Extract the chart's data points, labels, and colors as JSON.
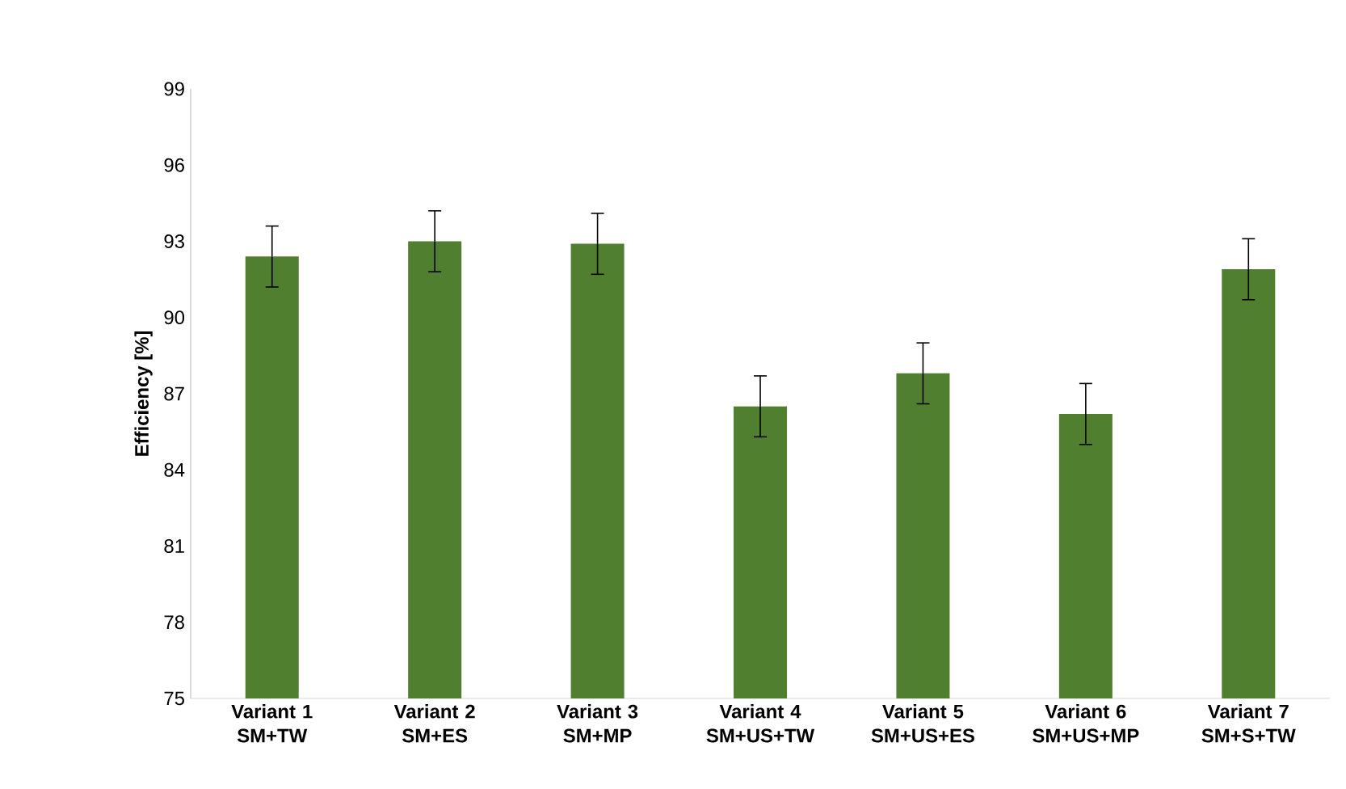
{
  "chart_data": {
    "type": "bar",
    "ylabel": "Efficiency [%]",
    "categories": [
      "Variant 1 SM+TW",
      "Variant 2 SM+ES",
      "Variant 3 SM+MP",
      "Variant 4 SM+US+TW",
      "Variant 5 SM+US+ES",
      "Variant 6 SM+US+MP",
      "Variant 7 SM+S+TW"
    ],
    "values": [
      92.4,
      93.0,
      92.9,
      86.5,
      87.8,
      86.2,
      91.9
    ],
    "errors": [
      1.2,
      1.2,
      1.2,
      1.2,
      1.2,
      1.2,
      1.2
    ],
    "color": "#4f7f2f",
    "ylim": [
      75,
      99
    ],
    "yticks": [
      75,
      78,
      81,
      84,
      87,
      90,
      93,
      96,
      99
    ],
    "grid": false
  }
}
